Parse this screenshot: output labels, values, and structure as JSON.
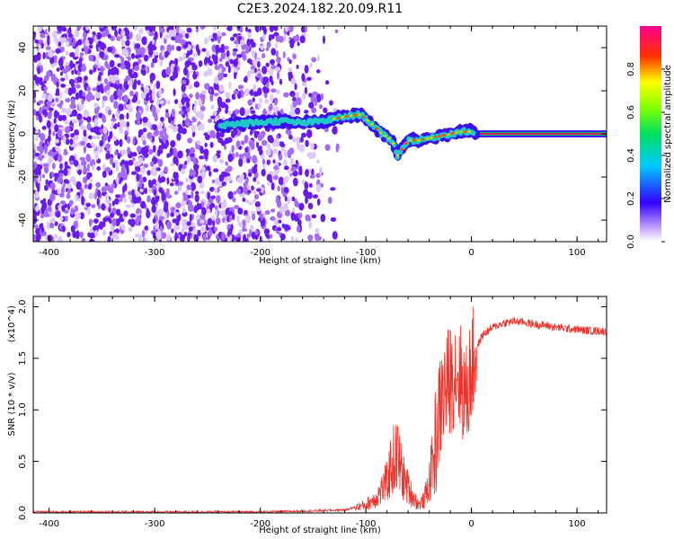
{
  "title": "C2E3.2024.182.20.09.R11",
  "chart_data": [
    {
      "type": "heatmap",
      "xlabel": "Height of straight line (km)",
      "ylabel": "Frequency (Hz)",
      "xlim": [
        -415,
        128
      ],
      "ylim": [
        -50,
        50
      ],
      "xticks": [
        -400,
        -300,
        -200,
        -100,
        0,
        100
      ],
      "yticks": [
        -40,
        -20,
        0,
        20,
        40
      ],
      "colorbar": {
        "label": "Normalized spectral amplitude",
        "range": [
          0.0,
          1.0
        ],
        "ticks": [
          0.0,
          0.2,
          0.4,
          0.6,
          0.8
        ]
      },
      "ridge": {
        "x": [
          -240,
          -210,
          -180,
          -160,
          -140,
          -120,
          -105,
          -95,
          -85,
          -75,
          -70,
          -60,
          -50,
          -40,
          -30,
          -20,
          -10,
          0,
          5,
          128
        ],
        "y": [
          4,
          5,
          6,
          5,
          6,
          8,
          9,
          5,
          0,
          -3,
          -10,
          -3,
          -3,
          -2,
          -1,
          0,
          1,
          1,
          0,
          0
        ]
      },
      "noise_region_x": [
        -415,
        -130
      ]
    },
    {
      "type": "line",
      "xlabel": "Height of straight line (km)",
      "ylabel": "SNR (10 * v/v)",
      "multiplier": "(x10^4)",
      "xlim": [
        -415,
        128
      ],
      "ylim": [
        0,
        2.1
      ],
      "xticks": [
        -400,
        -300,
        -200,
        -100,
        0,
        100
      ],
      "yticks": [
        0.0,
        0.5,
        1.0,
        1.5,
        2.0
      ],
      "series": [
        {
          "color": "#e8352d",
          "x": [
            -415,
            -300,
            -200,
            -150,
            -120,
            -100,
            -90,
            -80,
            -75,
            -70,
            -65,
            -60,
            -55,
            -50,
            -45,
            -40,
            -35,
            -30,
            -25,
            -20,
            -15,
            -10,
            -5,
            0,
            5,
            10,
            20,
            30,
            40,
            50,
            60,
            70,
            80,
            90,
            100,
            110,
            128
          ],
          "y": [
            0.01,
            0.01,
            0.01,
            0.02,
            0.03,
            0.08,
            0.15,
            0.3,
            0.5,
            0.55,
            0.35,
            0.25,
            0.15,
            0.08,
            0.12,
            0.3,
            0.6,
            1.0,
            1.2,
            1.3,
            1.4,
            1.3,
            1.1,
            1.4,
            1.6,
            1.72,
            1.8,
            1.84,
            1.86,
            1.85,
            1.83,
            1.82,
            1.8,
            1.79,
            1.78,
            1.77,
            1.76
          ]
        }
      ]
    }
  ]
}
